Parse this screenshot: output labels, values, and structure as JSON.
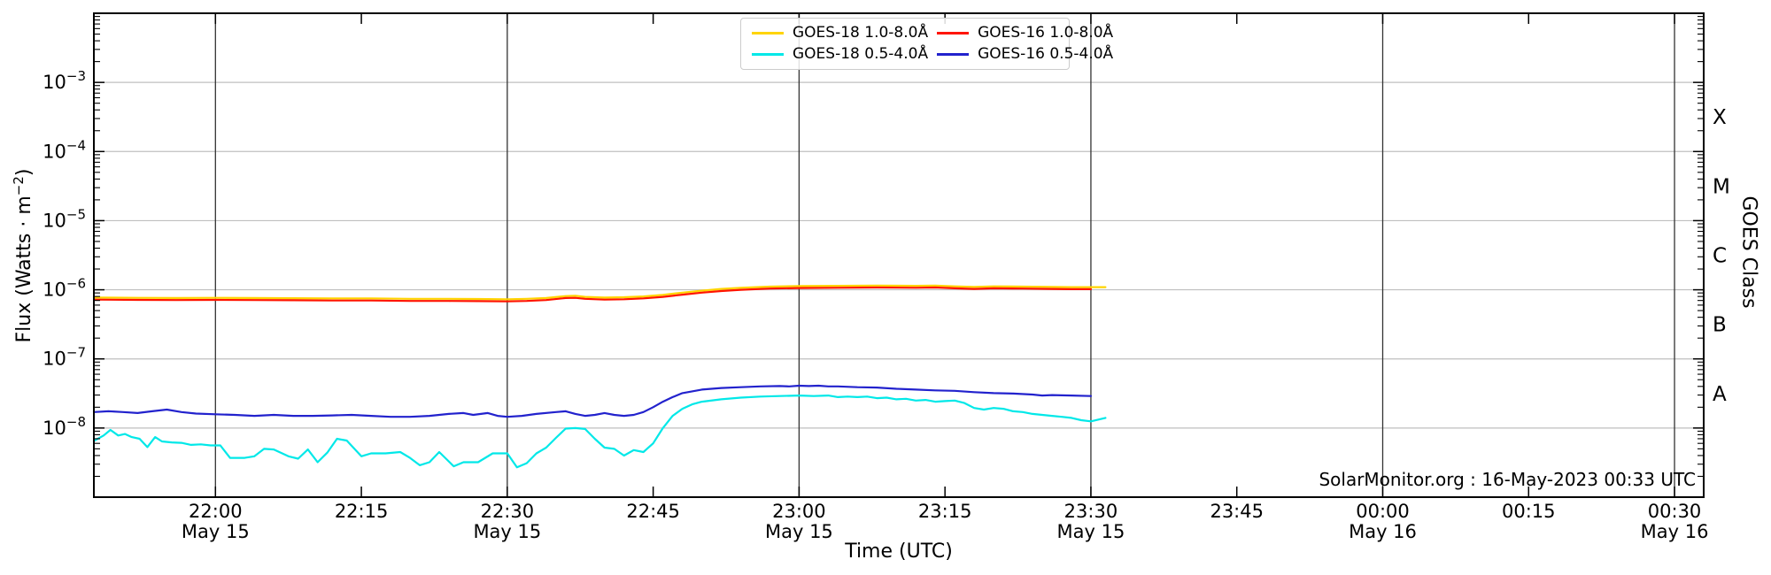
{
  "chart_data": {
    "type": "line",
    "title": "",
    "xlabel": "Time (UTC)",
    "ylabel_parts": {
      "pre": "Flux (Watts · m",
      "sup": "−2",
      "post": ")"
    },
    "right_axis_label": "GOES Class",
    "annotation": "SolarMonitor.org : 16-May-2023 00:33 UTC",
    "x_axis": {
      "unit": "minutes relative to 22:00 UTC May 15",
      "min": -12.5,
      "max": 153
    },
    "y_axis": {
      "scale": "log",
      "top_exp": -2,
      "bottom_exp": -9,
      "labeled_exps": [
        -3,
        -4,
        -5,
        -6,
        -7,
        -8
      ]
    },
    "x_ticks": [
      {
        "t": 0,
        "label": "22:00",
        "date": "May 15"
      },
      {
        "t": 15,
        "label": "22:15",
        "date": ""
      },
      {
        "t": 30,
        "label": "22:30",
        "date": "May 15"
      },
      {
        "t": 45,
        "label": "22:45",
        "date": ""
      },
      {
        "t": 60,
        "label": "23:00",
        "date": "May 15"
      },
      {
        "t": 75,
        "label": "23:15",
        "date": ""
      },
      {
        "t": 90,
        "label": "23:30",
        "date": "May 15"
      },
      {
        "t": 105,
        "label": "23:45",
        "date": ""
      },
      {
        "t": 120,
        "label": "00:00",
        "date": "May 16"
      },
      {
        "t": 135,
        "label": "00:15",
        "date": ""
      },
      {
        "t": 150,
        "label": "00:30",
        "date": "May 16"
      }
    ],
    "v_gridlines_t": [
      0,
      30,
      60,
      90,
      120,
      150
    ],
    "h_gridline_exps": [
      -3,
      -4,
      -5,
      -6,
      -7,
      -8
    ],
    "goes_class_labels": [
      {
        "label": "X",
        "exp": -3.5
      },
      {
        "label": "M",
        "exp": -4.5
      },
      {
        "label": "C",
        "exp": -5.5
      },
      {
        "label": "B",
        "exp": -6.5
      },
      {
        "label": "A",
        "exp": -7.5
      }
    ],
    "series": [
      {
        "id": "goes18-long",
        "name": "GOES-18 1.0-8.0Å",
        "color": "#ffd400",
        "points": [
          [
            -12.5,
            7.7e-07
          ],
          [
            -8,
            7.65e-07
          ],
          [
            -4,
            7.6e-07
          ],
          [
            0,
            7.65e-07
          ],
          [
            4,
            7.6e-07
          ],
          [
            8,
            7.55e-07
          ],
          [
            12,
            7.5e-07
          ],
          [
            16,
            7.5e-07
          ],
          [
            20,
            7.4e-07
          ],
          [
            24,
            7.4e-07
          ],
          [
            27,
            7.35e-07
          ],
          [
            30,
            7.3e-07
          ],
          [
            32,
            7.4e-07
          ],
          [
            34,
            7.6e-07
          ],
          [
            36,
            8.1e-07
          ],
          [
            37,
            8.2e-07
          ],
          [
            38,
            7.9e-07
          ],
          [
            40,
            7.7e-07
          ],
          [
            42,
            7.8e-07
          ],
          [
            44,
            8e-07
          ],
          [
            46,
            8.45e-07
          ],
          [
            48,
            9.1e-07
          ],
          [
            50,
            9.7e-07
          ],
          [
            52,
            1.03e-06
          ],
          [
            54,
            1.07e-06
          ],
          [
            57,
            1.11e-06
          ],
          [
            60,
            1.13e-06
          ],
          [
            64,
            1.14e-06
          ],
          [
            68,
            1.15e-06
          ],
          [
            72,
            1.14e-06
          ],
          [
            74,
            1.15e-06
          ],
          [
            76,
            1.12e-06
          ],
          [
            78,
            1.1e-06
          ],
          [
            80,
            1.12e-06
          ],
          [
            83,
            1.11e-06
          ],
          [
            86,
            1.1e-06
          ],
          [
            88,
            1.09e-06
          ],
          [
            90,
            1.09e-06
          ],
          [
            91.5,
            1.09e-06
          ]
        ]
      },
      {
        "id": "goes18-short",
        "name": "GOES-18 0.5-4.0Å",
        "color": "#00e8e8",
        "points": [
          [
            -12.5,
            6.5e-09
          ],
          [
            -11.5,
            7.8e-09
          ],
          [
            -10.8,
            9.4e-09
          ],
          [
            -10,
            7.8e-09
          ],
          [
            -9.3,
            8.2e-09
          ],
          [
            -8.6,
            7.4e-09
          ],
          [
            -7.8,
            7e-09
          ],
          [
            -7,
            5.3e-09
          ],
          [
            -6.2,
            7.4e-09
          ],
          [
            -5.5,
            6.4e-09
          ],
          [
            -4.5,
            6.2e-09
          ],
          [
            -3.5,
            6.1e-09
          ],
          [
            -2.5,
            5.7e-09
          ],
          [
            -1.5,
            5.8e-09
          ],
          [
            -0.5,
            5.6e-09
          ],
          [
            0.5,
            5.6e-09
          ],
          [
            1.5,
            3.7e-09
          ],
          [
            3,
            3.7e-09
          ],
          [
            4,
            3.9e-09
          ],
          [
            5,
            5e-09
          ],
          [
            6,
            4.9e-09
          ],
          [
            7.5,
            3.9e-09
          ],
          [
            8.5,
            3.6e-09
          ],
          [
            9.5,
            4.9e-09
          ],
          [
            10.5,
            3.2e-09
          ],
          [
            11.5,
            4.4e-09
          ],
          [
            12.5,
            7e-09
          ],
          [
            13.5,
            6.6e-09
          ],
          [
            15,
            3.9e-09
          ],
          [
            16,
            4.3e-09
          ],
          [
            17.5,
            4.3e-09
          ],
          [
            19,
            4.5e-09
          ],
          [
            20,
            3.7e-09
          ],
          [
            21,
            2.9e-09
          ],
          [
            22,
            3.2e-09
          ],
          [
            23,
            4.5e-09
          ],
          [
            24.5,
            2.8e-09
          ],
          [
            25.5,
            3.2e-09
          ],
          [
            27,
            3.2e-09
          ],
          [
            28.5,
            4.3e-09
          ],
          [
            30,
            4.3e-09
          ],
          [
            31,
            2.7e-09
          ],
          [
            32,
            3.1e-09
          ],
          [
            33,
            4.3e-09
          ],
          [
            34,
            5.2e-09
          ],
          [
            35,
            7.2e-09
          ],
          [
            36,
            9.8e-09
          ],
          [
            37,
            1e-08
          ],
          [
            38,
            9.7e-09
          ],
          [
            39,
            7e-09
          ],
          [
            40,
            5.2e-09
          ],
          [
            41,
            5e-09
          ],
          [
            42,
            4e-09
          ],
          [
            43,
            4.8e-09
          ],
          [
            44,
            4.5e-09
          ],
          [
            45,
            6e-09
          ],
          [
            46,
            1e-08
          ],
          [
            47,
            1.5e-08
          ],
          [
            48,
            1.9e-08
          ],
          [
            49,
            2.2e-08
          ],
          [
            50,
            2.4e-08
          ],
          [
            52,
            2.6e-08
          ],
          [
            54,
            2.75e-08
          ],
          [
            56,
            2.85e-08
          ],
          [
            58,
            2.9e-08
          ],
          [
            60,
            2.95e-08
          ],
          [
            61.5,
            2.9e-08
          ],
          [
            63,
            2.95e-08
          ],
          [
            64,
            2.8e-08
          ],
          [
            65,
            2.85e-08
          ],
          [
            66,
            2.8e-08
          ],
          [
            67,
            2.85e-08
          ],
          [
            68,
            2.7e-08
          ],
          [
            69,
            2.75e-08
          ],
          [
            70,
            2.6e-08
          ],
          [
            71,
            2.65e-08
          ],
          [
            72,
            2.5e-08
          ],
          [
            73,
            2.55e-08
          ],
          [
            74,
            2.4e-08
          ],
          [
            75,
            2.45e-08
          ],
          [
            76,
            2.5e-08
          ],
          [
            77,
            2.3e-08
          ],
          [
            78,
            1.95e-08
          ],
          [
            79,
            1.85e-08
          ],
          [
            80,
            1.95e-08
          ],
          [
            81,
            1.9e-08
          ],
          [
            82,
            1.75e-08
          ],
          [
            83,
            1.7e-08
          ],
          [
            84,
            1.6e-08
          ],
          [
            85,
            1.55e-08
          ],
          [
            86,
            1.5e-08
          ],
          [
            87,
            1.45e-08
          ],
          [
            88,
            1.4e-08
          ],
          [
            89,
            1.3e-08
          ],
          [
            90,
            1.25e-08
          ],
          [
            91.5,
            1.4e-08
          ]
        ]
      },
      {
        "id": "goes16-long",
        "name": "GOES-16 1.0-8.0Å",
        "color": "#ff1400",
        "points": [
          [
            -12.5,
            7.2e-07
          ],
          [
            -8,
            7.15e-07
          ],
          [
            -4,
            7.1e-07
          ],
          [
            0,
            7.15e-07
          ],
          [
            4,
            7.1e-07
          ],
          [
            8,
            7.05e-07
          ],
          [
            12,
            7e-07
          ],
          [
            16,
            7e-07
          ],
          [
            20,
            6.9e-07
          ],
          [
            24,
            6.9e-07
          ],
          [
            27,
            6.85e-07
          ],
          [
            30,
            6.8e-07
          ],
          [
            32,
            6.9e-07
          ],
          [
            34,
            7.1e-07
          ],
          [
            36,
            7.6e-07
          ],
          [
            37,
            7.65e-07
          ],
          [
            38,
            7.4e-07
          ],
          [
            40,
            7.2e-07
          ],
          [
            42,
            7.3e-07
          ],
          [
            44,
            7.5e-07
          ],
          [
            46,
            7.9e-07
          ],
          [
            48,
            8.5e-07
          ],
          [
            50,
            9.1e-07
          ],
          [
            52,
            9.6e-07
          ],
          [
            54,
            1e-06
          ],
          [
            57,
            1.04e-06
          ],
          [
            60,
            1.06e-06
          ],
          [
            64,
            1.07e-06
          ],
          [
            68,
            1.08e-06
          ],
          [
            72,
            1.07e-06
          ],
          [
            74,
            1.08e-06
          ],
          [
            76,
            1.05e-06
          ],
          [
            78,
            1.03e-06
          ],
          [
            80,
            1.05e-06
          ],
          [
            83,
            1.04e-06
          ],
          [
            86,
            1.03e-06
          ],
          [
            88,
            1.02e-06
          ],
          [
            90,
            1.02e-06
          ]
        ]
      },
      {
        "id": "goes16-short",
        "name": "GOES-16 0.5-4.0Å",
        "color": "#2222cd",
        "points": [
          [
            -12.5,
            1.7e-08
          ],
          [
            -11,
            1.75e-08
          ],
          [
            -9.5,
            1.7e-08
          ],
          [
            -8,
            1.65e-08
          ],
          [
            -6.5,
            1.75e-08
          ],
          [
            -5,
            1.85e-08
          ],
          [
            -3.5,
            1.7e-08
          ],
          [
            -2,
            1.62e-08
          ],
          [
            0,
            1.58e-08
          ],
          [
            2,
            1.55e-08
          ],
          [
            4,
            1.5e-08
          ],
          [
            6,
            1.55e-08
          ],
          [
            8,
            1.5e-08
          ],
          [
            10,
            1.5e-08
          ],
          [
            12,
            1.52e-08
          ],
          [
            14,
            1.55e-08
          ],
          [
            16,
            1.5e-08
          ],
          [
            18,
            1.45e-08
          ],
          [
            20,
            1.45e-08
          ],
          [
            22,
            1.5e-08
          ],
          [
            24,
            1.6e-08
          ],
          [
            25.5,
            1.65e-08
          ],
          [
            26.5,
            1.55e-08
          ],
          [
            28,
            1.65e-08
          ],
          [
            29,
            1.5e-08
          ],
          [
            30,
            1.45e-08
          ],
          [
            31.5,
            1.5e-08
          ],
          [
            33,
            1.6e-08
          ],
          [
            35,
            1.7e-08
          ],
          [
            36,
            1.75e-08
          ],
          [
            37,
            1.6e-08
          ],
          [
            38,
            1.5e-08
          ],
          [
            39,
            1.55e-08
          ],
          [
            40,
            1.65e-08
          ],
          [
            41,
            1.55e-08
          ],
          [
            42,
            1.5e-08
          ],
          [
            43,
            1.55e-08
          ],
          [
            44,
            1.7e-08
          ],
          [
            45,
            2e-08
          ],
          [
            46,
            2.4e-08
          ],
          [
            47,
            2.8e-08
          ],
          [
            48,
            3.2e-08
          ],
          [
            50,
            3.6e-08
          ],
          [
            52,
            3.8e-08
          ],
          [
            54,
            3.9e-08
          ],
          [
            56,
            4e-08
          ],
          [
            58,
            4.05e-08
          ],
          [
            59,
            4e-08
          ],
          [
            60,
            4.1e-08
          ],
          [
            61,
            4.05e-08
          ],
          [
            62,
            4.1e-08
          ],
          [
            63,
            4e-08
          ],
          [
            64,
            4e-08
          ],
          [
            66,
            3.9e-08
          ],
          [
            68,
            3.85e-08
          ],
          [
            70,
            3.7e-08
          ],
          [
            72,
            3.6e-08
          ],
          [
            74,
            3.5e-08
          ],
          [
            76,
            3.45e-08
          ],
          [
            78,
            3.3e-08
          ],
          [
            80,
            3.2e-08
          ],
          [
            82,
            3.15e-08
          ],
          [
            84,
            3.05e-08
          ],
          [
            85,
            2.95e-08
          ],
          [
            86,
            3e-08
          ],
          [
            88,
            2.95e-08
          ],
          [
            90,
            2.9e-08
          ]
        ]
      }
    ],
    "legend": {
      "order_row_major": [
        "goes18-long",
        "goes16-long",
        "goes18-short",
        "goes16-short"
      ]
    }
  }
}
